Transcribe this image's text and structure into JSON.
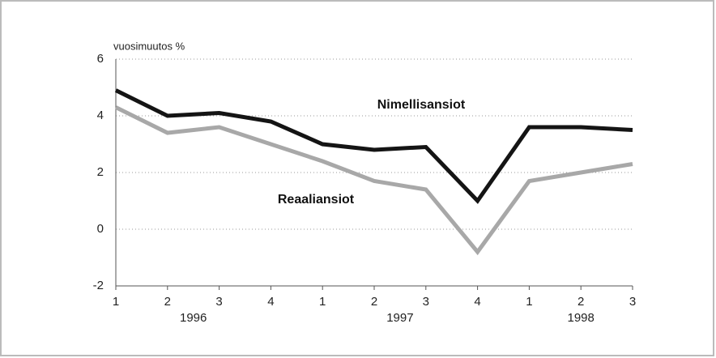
{
  "chart_data": {
    "type": "line",
    "y_label": "vuosimuutos %",
    "categories": [
      "1",
      "2",
      "3",
      "4",
      "1",
      "2",
      "3",
      "4",
      "1",
      "2",
      "3"
    ],
    "years": [
      "1996",
      "1997",
      "1998"
    ],
    "series": [
      {
        "name": "Nimellisansiot",
        "color": "#141414",
        "values": [
          4.9,
          4.0,
          4.1,
          3.8,
          3.0,
          2.8,
          2.9,
          1.0,
          3.6,
          3.6,
          3.5
        ]
      },
      {
        "name": "Reaaliansiot",
        "color": "#a8a8a8",
        "values": [
          4.3,
          3.4,
          3.6,
          3.0,
          2.4,
          1.7,
          1.4,
          -0.8,
          1.7,
          2.0,
          2.3
        ]
      }
    ],
    "ylim": [
      -2,
      6
    ],
    "yticks": [
      -2,
      0,
      2,
      4,
      6
    ],
    "grid": true
  }
}
